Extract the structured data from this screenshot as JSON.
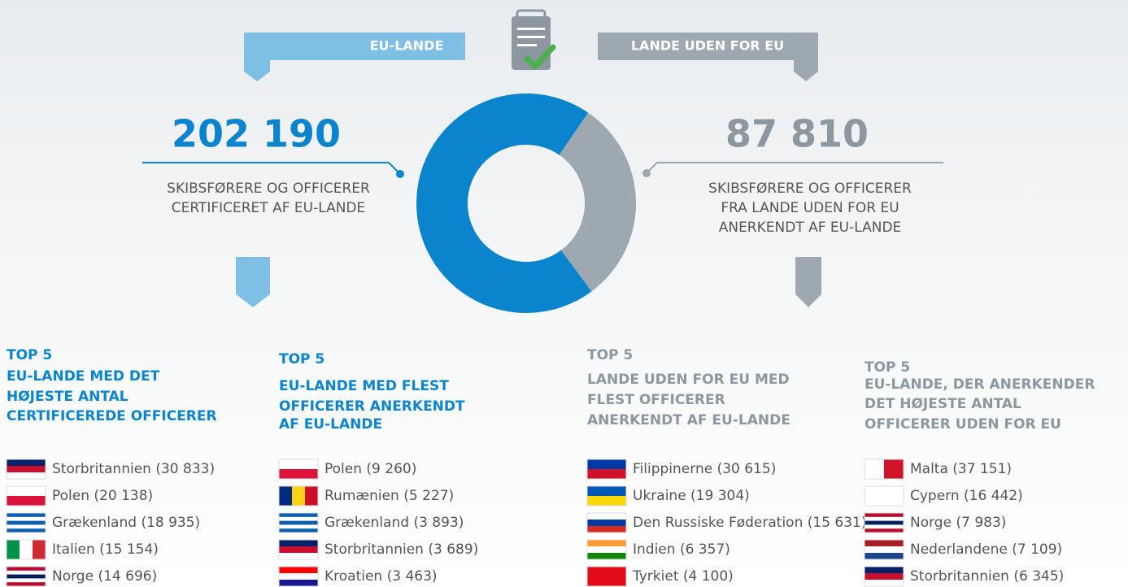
{
  "chart_data": {
    "type": "donut",
    "categories": [
      "EU-LANDE",
      "LANDE UDEN FOR EU"
    ],
    "values": [
      202190,
      87810
    ],
    "value_labels": [
      "202 190",
      "87 810"
    ],
    "colors": [
      "#0a84cc",
      "#9ea8b0"
    ],
    "captions": [
      [
        "SKIBSFØRERE OG OFFICERER",
        "CERTIFICERET AF EU-LANDE"
      ],
      [
        "SKIBSFØRERE OG OFFICERER",
        "FRA LANDE UDEN FOR EU",
        "ANERKENDT AF EU-LANDE"
      ]
    ]
  },
  "lists": [
    {
      "title": "TOP 5",
      "lines": [
        "EU-LANDE MED DET",
        "HØJESTE ANTAL",
        "CERTIFICEREDE OFFICERER"
      ],
      "items": [
        "Storbritannien (30 833)",
        "Polen (20 138)",
        "Grækenland (18 935)",
        "Italien (15 154)",
        "Norge (14 696)"
      ]
    },
    {
      "title": "TOP 5",
      "lines": [
        "EU-LANDE MED FLEST",
        "OFFICERER ANERKENDT",
        "AF EU-LANDE"
      ],
      "items": [
        "Polen (9 260)",
        "Rumænien (5 227)",
        "Grækenland (3 893)",
        "Storbritannien (3 689)",
        "Kroatien (3 463)"
      ]
    },
    {
      "title": "TOP 5",
      "lines": [
        "LANDE UDEN FOR EU MED",
        "FLEST OFFICERER",
        "ANERKENDT AF EU-LANDE"
      ],
      "items": [
        "Filippinerne (30 615)",
        "Ukraine (19 304)",
        "Den Russiske Føderation (15 631)",
        "Indien (6 357)",
        "Tyrkiet (4 100)"
      ]
    },
    {
      "title": "TOP 5",
      "lines": [
        "EU-LANDE, DER ANERKENDER",
        "DET HØJESTE ANTAL",
        "OFFICERER UDEN FOR EU"
      ],
      "items": [
        "Malta (37 151)",
        "Cypern (16 442)",
        "Norge (7 983)",
        "Nederlandene (7 109)",
        "Storbritannien (6 345)"
      ]
    }
  ]
}
